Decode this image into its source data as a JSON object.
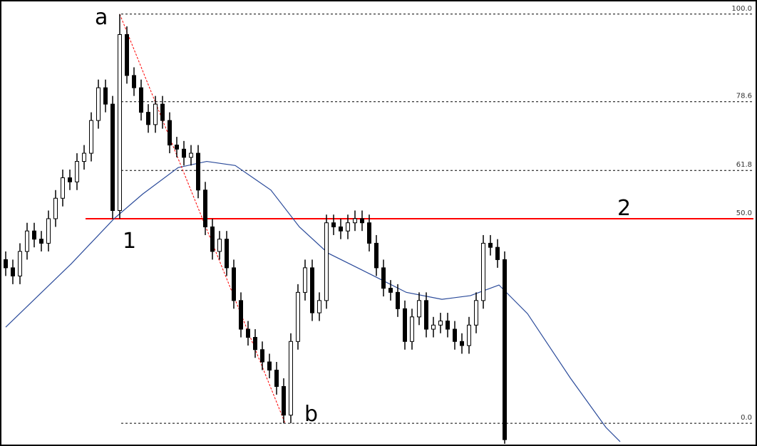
{
  "chart_data": {
    "type": "candlestick",
    "xlim": [
      -0.6,
      104.9
    ],
    "ylim": [
      -5.2,
      103.1
    ],
    "yticks": [
      {
        "value": 100,
        "label": "100.0"
      },
      {
        "value": 78.6,
        "label": "78.6"
      },
      {
        "value": 61.8,
        "label": "61.8"
      },
      {
        "value": 50,
        "label": "50.0"
      },
      {
        "value": 0,
        "label": "0.0"
      }
    ],
    "up_color": "#ffffff",
    "down_color": "#000000",
    "open": [
      40,
      38,
      36,
      42,
      47,
      45,
      44,
      50,
      55,
      60,
      59,
      64,
      66,
      74,
      82,
      78,
      52,
      95,
      85,
      82,
      76,
      73,
      78,
      74,
      68,
      67,
      65,
      66,
      57,
      48,
      42,
      45,
      38,
      30,
      23,
      21,
      18,
      15,
      13,
      9,
      2,
      20,
      32,
      38,
      27,
      30,
      49,
      48,
      47,
      49,
      50,
      49,
      44,
      38,
      33,
      32,
      28,
      20,
      26,
      30,
      23,
      24,
      25,
      23,
      20,
      19,
      24,
      30,
      44,
      43,
      40
    ],
    "high": [
      42,
      40,
      44,
      49,
      49,
      47,
      52,
      57,
      62,
      62,
      66,
      68,
      76,
      84,
      84,
      80,
      100,
      97,
      87,
      84,
      78,
      80,
      80,
      76,
      70,
      69,
      68,
      68,
      59,
      50,
      47,
      47,
      40,
      32,
      25,
      23,
      20,
      17,
      15,
      11,
      22,
      34,
      40,
      40,
      32,
      51,
      51,
      50,
      51,
      52,
      52,
      51,
      46,
      40,
      35,
      34,
      30,
      28,
      32,
      32,
      26,
      27,
      27,
      25,
      22,
      26,
      32,
      46,
      46,
      45,
      42
    ],
    "low": [
      36,
      34,
      34,
      40,
      43,
      42,
      42,
      48,
      53,
      57,
      57,
      62,
      64,
      72,
      76,
      50,
      50,
      83,
      80,
      74,
      71,
      71,
      72,
      66,
      65,
      63,
      63,
      55,
      46,
      40,
      40,
      36,
      28,
      21,
      19,
      16,
      13,
      11,
      7,
      0,
      0,
      18,
      30,
      25,
      25,
      28,
      46,
      45,
      45,
      47,
      47,
      42,
      36,
      31,
      30,
      26,
      18,
      18,
      24,
      21,
      21,
      22,
      21,
      18,
      17,
      17,
      22,
      28,
      41,
      38,
      -5
    ],
    "close": [
      38,
      36,
      42,
      47,
      45,
      44,
      50,
      55,
      60,
      59,
      64,
      66,
      74,
      82,
      78,
      52,
      95,
      85,
      82,
      76,
      73,
      78,
      74,
      68,
      67,
      65,
      66,
      57,
      48,
      42,
      45,
      38,
      30,
      23,
      21,
      18,
      15,
      13,
      9,
      2,
      20,
      32,
      38,
      27,
      30,
      49,
      48,
      47,
      49,
      50,
      49,
      44,
      38,
      33,
      32,
      28,
      20,
      26,
      30,
      23,
      24,
      25,
      23,
      20,
      19,
      24,
      30,
      44,
      43,
      40,
      -4
    ],
    "moving_average": {
      "color": "#2a4a9a",
      "x": [
        0,
        9.2,
        15.2,
        19.2,
        24.2,
        28.2,
        32.2,
        37.2,
        41.2,
        45.2,
        51.2,
        56.2,
        61.2,
        65.2,
        69.2,
        73.2,
        79.2,
        84.2,
        86.2
      ],
      "values": [
        23.5,
        39,
        50,
        56,
        62.5,
        64,
        63,
        57,
        48,
        41.6,
        36.4,
        32,
        30.3,
        31.2,
        33.8,
        26.8,
        11.1,
        -1,
        -4.5
      ]
    },
    "red_line": {
      "value": 50,
      "color": "#ff0000"
    },
    "trend_line": {
      "x": [
        16,
        39.2
      ],
      "values": [
        100,
        0
      ],
      "color": "#ff0000"
    },
    "annotations": [
      "a",
      "b",
      "1",
      "2"
    ]
  }
}
